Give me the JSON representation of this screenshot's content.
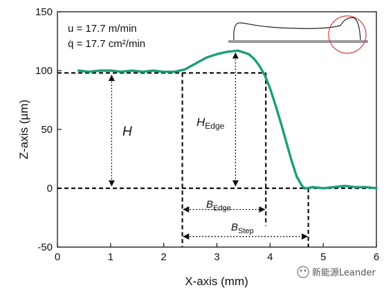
{
  "chart_data": {
    "type": "line",
    "xlabel": "X-axis (mm)",
    "ylabel": "Z-axis (µm)",
    "xlim": [
      0,
      6
    ],
    "ylim": [
      -50,
      150
    ],
    "xticks": [
      0,
      1,
      2,
      3,
      4,
      5,
      6
    ],
    "yticks": [
      -50,
      0,
      50,
      100,
      150
    ],
    "grid": false,
    "params": [
      "u = 17.7 m/min",
      "q̇ = 17.7 cm²/min"
    ],
    "series": [
      {
        "color": "#1a9e7a",
        "x": [
          0.4,
          0.6,
          0.8,
          1.0,
          1.2,
          1.4,
          1.6,
          1.8,
          2.0,
          2.2,
          2.4,
          2.6,
          2.8,
          3.0,
          3.2,
          3.4,
          3.6,
          3.7,
          3.8,
          3.9,
          4.0,
          4.1,
          4.2,
          4.3,
          4.4,
          4.5,
          4.6,
          4.65,
          4.7,
          4.8,
          5.0,
          5.2,
          5.4,
          5.6,
          5.8,
          6.0
        ],
        "y": [
          100,
          99,
          100,
          100,
          99,
          100,
          99,
          100,
          99,
          99,
          101,
          106,
          111,
          114,
          116,
          117,
          114,
          110,
          104,
          96,
          85,
          71,
          56,
          40,
          24,
          10,
          2,
          0,
          0,
          1,
          0,
          1,
          2,
          1,
          1,
          0
        ]
      }
    ],
    "annotations": {
      "H": "H",
      "H_edge_main": "H",
      "H_edge_sub": "Edge",
      "B_edge_main": "B",
      "B_edge_sub": "Edge",
      "B_step_main": "B",
      "B_step_sub": "Step"
    }
  },
  "inset": {
    "label": "edge profile schematic",
    "highlight_color": "#d23c3c"
  },
  "watermark": {
    "text": "新能源Leander"
  }
}
